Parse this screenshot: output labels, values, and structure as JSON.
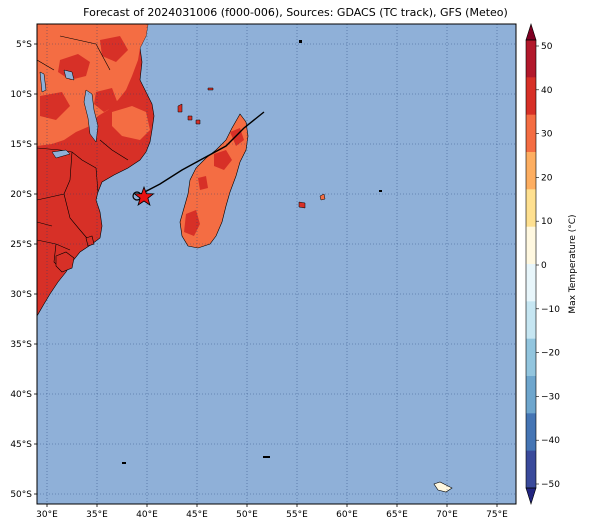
{
  "title": "Forecast of 2024031006 (f000-006), Sources: GDACS (TC track), GFS (Meteo)",
  "map": {
    "ocean_color": "#8fb0d8",
    "lon_ticks": [
      "30°E",
      "35°E",
      "40°E",
      "45°E",
      "50°E",
      "55°E",
      "60°E",
      "65°E",
      "70°E",
      "75°E"
    ],
    "lat_ticks": [
      "5°S",
      "10°S",
      "15°S",
      "20°S",
      "25°S",
      "30°S",
      "35°S",
      "40°S",
      "45°S",
      "50°S"
    ],
    "storm_marker": "star",
    "storm_color": "#e81010",
    "track_color": "#000000"
  },
  "colorbar": {
    "label": "Max Temperature (°C)",
    "ticks": [
      "50",
      "40",
      "30",
      "20",
      "10",
      "0",
      "−10",
      "−20",
      "−30",
      "−40",
      "−50"
    ],
    "colors": [
      "#7f0022",
      "#b2182b",
      "#d73027",
      "#f46d43",
      "#fdae61",
      "#fee090",
      "#fff8e0",
      "#e8f6fb",
      "#c6e6f2",
      "#92c5de",
      "#6ea6cd",
      "#4575b4",
      "#3a4a9b",
      "#222580"
    ]
  }
}
